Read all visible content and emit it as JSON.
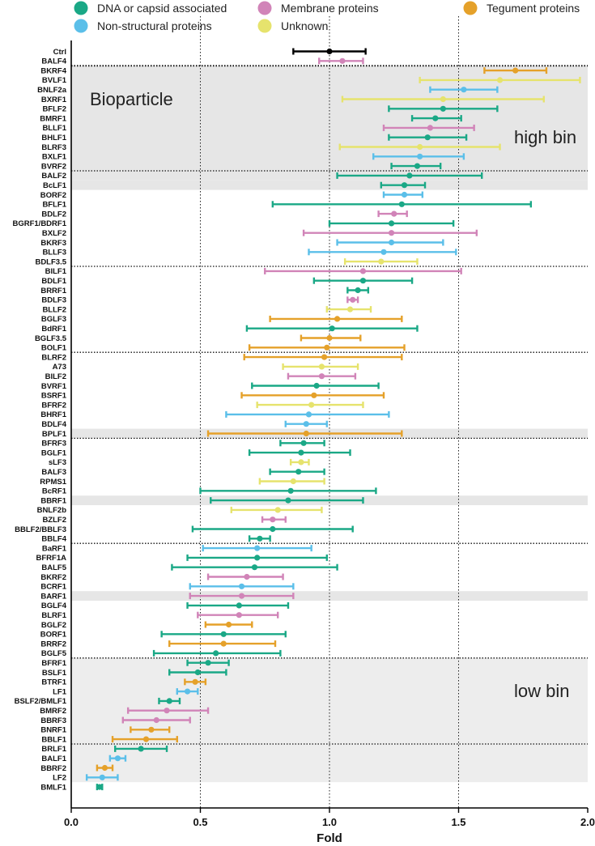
{
  "chart_data": {
    "type": "scatter",
    "orientation": "horizontal",
    "xlabel": "Fold",
    "xlim": [
      0,
      2
    ],
    "xticks": [
      "0.0",
      "0.5",
      "1.0",
      "1.5",
      "2.0"
    ],
    "tick_values": [
      0,
      0.5,
      1,
      1.5,
      2
    ],
    "reference_lines": [
      0.5,
      1.0,
      1.5
    ],
    "error_bars": true,
    "legend_position": "top",
    "legend": [
      {
        "key": "dna",
        "name": "DNA or capsid associated",
        "color": "#1aa886"
      },
      {
        "key": "mem",
        "name": "Membrane proteins",
        "color": "#d184b8"
      },
      {
        "key": "teg",
        "name": "Tegument proteins",
        "color": "#e5a12a"
      },
      {
        "key": "ns",
        "name": "Non-structural proteins",
        "color": "#5bbfe9"
      },
      {
        "key": "unk",
        "name": "Unknown",
        "color": "#e6e36d"
      }
    ],
    "control_color": "#000000",
    "annotations": [
      {
        "text": "Bioparticle",
        "bin_start": 2
      },
      {
        "text": "high bin",
        "bin_start": 2
      },
      {
        "text": "low bin",
        "bin_start": 64
      }
    ],
    "high_bin_rows": [
      2,
      13
    ],
    "low_bin_rows": [
      64,
      76
    ],
    "shaded_rows": [
      14,
      40,
      47,
      57
    ],
    "separators_after": [
      1,
      12,
      22,
      31,
      40,
      51,
      63,
      72
    ],
    "points": [
      {
        "label": "Ctrl",
        "cat": "ctrl",
        "mean": 1.0,
        "low": 0.86,
        "high": 1.14
      },
      {
        "label": "BALF4",
        "cat": "mem",
        "mean": 1.05,
        "low": 0.96,
        "high": 1.13
      },
      {
        "label": "BKRF4",
        "cat": "teg",
        "mean": 1.72,
        "low": 1.6,
        "high": 1.84
      },
      {
        "label": "BVLF1",
        "cat": "unk",
        "mean": 1.66,
        "low": 1.35,
        "high": 1.97
      },
      {
        "label": "BNLF2a",
        "cat": "ns",
        "mean": 1.52,
        "low": 1.39,
        "high": 1.65
      },
      {
        "label": "BXRF1",
        "cat": "unk",
        "mean": 1.44,
        "low": 1.05,
        "high": 1.83
      },
      {
        "label": "BFLF2",
        "cat": "dna",
        "mean": 1.44,
        "low": 1.23,
        "high": 1.65
      },
      {
        "label": "BMRF1",
        "cat": "dna",
        "mean": 1.41,
        "low": 1.32,
        "high": 1.51
      },
      {
        "label": "BLLF1",
        "cat": "mem",
        "mean": 1.39,
        "low": 1.21,
        "high": 1.56
      },
      {
        "label": "BHLF1",
        "cat": "dna",
        "mean": 1.38,
        "low": 1.23,
        "high": 1.53
      },
      {
        "label": "BLRF3",
        "cat": "unk",
        "mean": 1.35,
        "low": 1.04,
        "high": 1.66
      },
      {
        "label": "BXLF1",
        "cat": "ns",
        "mean": 1.35,
        "low": 1.17,
        "high": 1.52
      },
      {
        "label": "BVRF2",
        "cat": "dna",
        "mean": 1.34,
        "low": 1.24,
        "high": 1.43
      },
      {
        "label": "BALF2",
        "cat": "dna",
        "mean": 1.31,
        "low": 1.03,
        "high": 1.59
      },
      {
        "label": "BcLF1",
        "cat": "dna",
        "mean": 1.29,
        "low": 1.2,
        "high": 1.37
      },
      {
        "label": "BORF2",
        "cat": "ns",
        "mean": 1.29,
        "low": 1.21,
        "high": 1.36
      },
      {
        "label": "BFLF1",
        "cat": "dna",
        "mean": 1.28,
        "low": 0.78,
        "high": 1.78
      },
      {
        "label": "BDLF2",
        "cat": "mem",
        "mean": 1.25,
        "low": 1.19,
        "high": 1.3
      },
      {
        "label": "BGRF1/BDRF1",
        "cat": "dna",
        "mean": 1.24,
        "low": 1.0,
        "high": 1.48
      },
      {
        "label": "BXLF2",
        "cat": "mem",
        "mean": 1.24,
        "low": 0.9,
        "high": 1.57
      },
      {
        "label": "BKRF3",
        "cat": "ns",
        "mean": 1.24,
        "low": 1.03,
        "high": 1.44
      },
      {
        "label": "BLLF3",
        "cat": "ns",
        "mean": 1.21,
        "low": 0.92,
        "high": 1.49
      },
      {
        "label": "BDLF3.5",
        "cat": "unk",
        "mean": 1.2,
        "low": 1.06,
        "high": 1.34
      },
      {
        "label": "BILF1",
        "cat": "mem",
        "mean": 1.13,
        "low": 0.75,
        "high": 1.51
      },
      {
        "label": "BDLF1",
        "cat": "dna",
        "mean": 1.13,
        "low": 0.94,
        "high": 1.32
      },
      {
        "label": "BRRF1",
        "cat": "dna",
        "mean": 1.11,
        "low": 1.07,
        "high": 1.15
      },
      {
        "label": "BDLF3",
        "cat": "mem",
        "mean": 1.09,
        "low": 1.07,
        "high": 1.11
      },
      {
        "label": "BLLF2",
        "cat": "unk",
        "mean": 1.08,
        "low": 0.99,
        "high": 1.16
      },
      {
        "label": "BGLF3",
        "cat": "teg",
        "mean": 1.03,
        "low": 0.77,
        "high": 1.28
      },
      {
        "label": "BdRF1",
        "cat": "dna",
        "mean": 1.01,
        "low": 0.68,
        "high": 1.34
      },
      {
        "label": "BGLF3.5",
        "cat": "teg",
        "mean": 1.0,
        "low": 0.89,
        "high": 1.12
      },
      {
        "label": "BOLF1",
        "cat": "teg",
        "mean": 0.99,
        "low": 0.69,
        "high": 1.29
      },
      {
        "label": "BLRF2",
        "cat": "teg",
        "mean": 0.98,
        "low": 0.67,
        "high": 1.28
      },
      {
        "label": "A73",
        "cat": "unk",
        "mean": 0.97,
        "low": 0.82,
        "high": 1.11
      },
      {
        "label": "BILF2",
        "cat": "mem",
        "mean": 0.97,
        "low": 0.84,
        "high": 1.1
      },
      {
        "label": "BVRF1",
        "cat": "dna",
        "mean": 0.95,
        "low": 0.7,
        "high": 1.19
      },
      {
        "label": "BSRF1",
        "cat": "teg",
        "mean": 0.94,
        "low": 0.66,
        "high": 1.21
      },
      {
        "label": "BFRF2",
        "cat": "unk",
        "mean": 0.93,
        "low": 0.72,
        "high": 1.13
      },
      {
        "label": "BHRF1",
        "cat": "ns",
        "mean": 0.92,
        "low": 0.6,
        "high": 1.23
      },
      {
        "label": "BDLF4",
        "cat": "ns",
        "mean": 0.91,
        "low": 0.83,
        "high": 0.99
      },
      {
        "label": "BPLF1",
        "cat": "teg",
        "mean": 0.91,
        "low": 0.53,
        "high": 1.28
      },
      {
        "label": "BFRF3",
        "cat": "dna",
        "mean": 0.9,
        "low": 0.81,
        "high": 0.98
      },
      {
        "label": "BGLF1",
        "cat": "dna",
        "mean": 0.89,
        "low": 0.69,
        "high": 1.08
      },
      {
        "label": "sLF3",
        "cat": "unk",
        "mean": 0.89,
        "low": 0.85,
        "high": 0.92
      },
      {
        "label": "BALF3",
        "cat": "dna",
        "mean": 0.88,
        "low": 0.77,
        "high": 0.98
      },
      {
        "label": "RPMS1",
        "cat": "unk",
        "mean": 0.86,
        "low": 0.73,
        "high": 0.98
      },
      {
        "label": "BcRF1",
        "cat": "dna",
        "mean": 0.85,
        "low": 0.5,
        "high": 1.18
      },
      {
        "label": "BBRF1",
        "cat": "dna",
        "mean": 0.84,
        "low": 0.54,
        "high": 1.13
      },
      {
        "label": "BNLF2b",
        "cat": "unk",
        "mean": 0.8,
        "low": 0.62,
        "high": 0.97
      },
      {
        "label": "BZLF2",
        "cat": "mem",
        "mean": 0.78,
        "low": 0.74,
        "high": 0.83
      },
      {
        "label": "BBLF2/BBLF3",
        "cat": "dna",
        "mean": 0.78,
        "low": 0.47,
        "high": 1.09
      },
      {
        "label": "BBLF4",
        "cat": "dna",
        "mean": 0.73,
        "low": 0.69,
        "high": 0.77
      },
      {
        "label": "BaRF1",
        "cat": "ns",
        "mean": 0.72,
        "low": 0.51,
        "high": 0.93
      },
      {
        "label": "BFRF1A",
        "cat": "dna",
        "mean": 0.72,
        "low": 0.45,
        "high": 0.99
      },
      {
        "label": "BALF5",
        "cat": "dna",
        "mean": 0.71,
        "low": 0.39,
        "high": 1.03
      },
      {
        "label": "BKRF2",
        "cat": "mem",
        "mean": 0.68,
        "low": 0.53,
        "high": 0.82
      },
      {
        "label": "BCRF1",
        "cat": "ns",
        "mean": 0.66,
        "low": 0.46,
        "high": 0.86
      },
      {
        "label": "BARF1",
        "cat": "mem",
        "mean": 0.66,
        "low": 0.46,
        "high": 0.86
      },
      {
        "label": "BGLF4",
        "cat": "dna",
        "mean": 0.65,
        "low": 0.45,
        "high": 0.84
      },
      {
        "label": "BLRF1",
        "cat": "mem",
        "mean": 0.65,
        "low": 0.49,
        "high": 0.8
      },
      {
        "label": "BGLF2",
        "cat": "teg",
        "mean": 0.61,
        "low": 0.52,
        "high": 0.7
      },
      {
        "label": "BORF1",
        "cat": "dna",
        "mean": 0.59,
        "low": 0.35,
        "high": 0.83
      },
      {
        "label": "BRRF2",
        "cat": "teg",
        "mean": 0.59,
        "low": 0.38,
        "high": 0.79
      },
      {
        "label": "BGLF5",
        "cat": "dna",
        "mean": 0.56,
        "low": 0.32,
        "high": 0.81
      },
      {
        "label": "BFRF1",
        "cat": "dna",
        "mean": 0.53,
        "low": 0.45,
        "high": 0.61
      },
      {
        "label": "BSLF1",
        "cat": "dna",
        "mean": 0.49,
        "low": 0.38,
        "high": 0.6
      },
      {
        "label": "BTRF1",
        "cat": "teg",
        "mean": 0.48,
        "low": 0.44,
        "high": 0.52
      },
      {
        "label": "LF1",
        "cat": "ns",
        "mean": 0.45,
        "low": 0.41,
        "high": 0.49
      },
      {
        "label": "BSLF2/BMLF1",
        "cat": "dna",
        "mean": 0.38,
        "low": 0.34,
        "high": 0.42
      },
      {
        "label": "BMRF2",
        "cat": "mem",
        "mean": 0.37,
        "low": 0.22,
        "high": 0.53
      },
      {
        "label": "BBRF3",
        "cat": "mem",
        "mean": 0.33,
        "low": 0.2,
        "high": 0.46
      },
      {
        "label": "BNRF1",
        "cat": "teg",
        "mean": 0.31,
        "low": 0.23,
        "high": 0.38
      },
      {
        "label": "BBLF1",
        "cat": "teg",
        "mean": 0.29,
        "low": 0.16,
        "high": 0.41
      },
      {
        "label": "BRLF1",
        "cat": "dna",
        "mean": 0.27,
        "low": 0.17,
        "high": 0.37
      },
      {
        "label": "BALF1",
        "cat": "ns",
        "mean": 0.18,
        "low": 0.15,
        "high": 0.21
      },
      {
        "label": "BBRF2",
        "cat": "teg",
        "mean": 0.13,
        "low": 0.1,
        "high": 0.16
      },
      {
        "label": "LF2",
        "cat": "ns",
        "mean": 0.12,
        "low": 0.06,
        "high": 0.18
      },
      {
        "label": "BMLF1",
        "cat": "dna",
        "mean": 0.11,
        "low": 0.1,
        "high": 0.12
      }
    ]
  }
}
